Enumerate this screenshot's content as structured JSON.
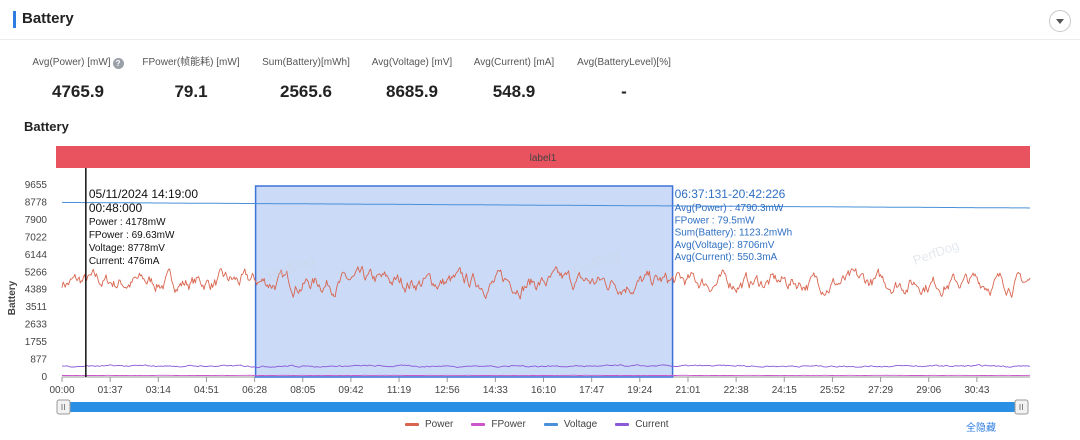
{
  "header": {
    "title": "Battery",
    "collapse_icon": "chevron-down-icon"
  },
  "stats": [
    {
      "label": "Avg(Power) [mW]",
      "value": "4765.9",
      "help": true
    },
    {
      "label": "FPower(帧能耗) [mW]",
      "value": "79.1"
    },
    {
      "label": "Sum(Battery)[mWh]",
      "value": "2565.6"
    },
    {
      "label": "Avg(Voltage) [mV]",
      "value": "8685.9"
    },
    {
      "label": "Avg(Current) [mA]",
      "value": "548.9"
    },
    {
      "label": "Avg(BatteryLevel)[%]",
      "value": "-"
    }
  ],
  "section_title": "Battery",
  "chart_data": {
    "type": "line",
    "band_label": "label1",
    "ylabel": "Battery",
    "yticks": [
      "9655",
      "8778",
      "7900",
      "7022",
      "6144",
      "5266",
      "4389",
      "3511",
      "2633",
      "1755",
      "877",
      "0"
    ],
    "ylim": [
      0,
      9655
    ],
    "xticks": [
      "00:00",
      "01:37",
      "03:14",
      "04:51",
      "06:28",
      "08:05",
      "09:42",
      "11:19",
      "12:56",
      "14:33",
      "16:10",
      "17:47",
      "19:24",
      "21:01",
      "22:38",
      "24:15",
      "25:52",
      "27:29",
      "29:06",
      "30:43"
    ],
    "x_range_min": [
      0,
      32.5
    ],
    "series": [
      {
        "name": "Power",
        "color": "#d9654f",
        "mean": 4765.9,
        "amplitude": 750
      },
      {
        "name": "FPower",
        "color": "#cc55cc",
        "mean": 79.1,
        "amplitude": 10
      },
      {
        "name": "Voltage",
        "color": "#4a90d9",
        "start": 8778,
        "end": 8500
      },
      {
        "name": "Current",
        "color": "#8a5ad8",
        "mean": 548.9,
        "amplitude": 70
      }
    ],
    "selection": {
      "start_min": 6.5,
      "end_min": 20.5
    },
    "cursor": {
      "x_min": 0.8,
      "datetime": "05/11/2024 14:19:00",
      "time": "00:48:000",
      "lines": [
        "Power   : 4178mW",
        "FPower : 69.63mW",
        "Voltage: 8778mV",
        "Current: 476mA"
      ]
    },
    "selection_info": {
      "range": "06:37:131-20:42:226",
      "lines": [
        "Avg(Power)    : 4790.3mW",
        "FPower         : 79.5mW",
        "Sum(Battery): 1123.2mWh",
        "Avg(Voltage): 8706mV",
        "Avg(Current): 550.3mA"
      ]
    },
    "watermark": "PerfDog",
    "grid": false,
    "legend": "bottom-center"
  },
  "footer": {
    "show_all": "全隐藏"
  }
}
